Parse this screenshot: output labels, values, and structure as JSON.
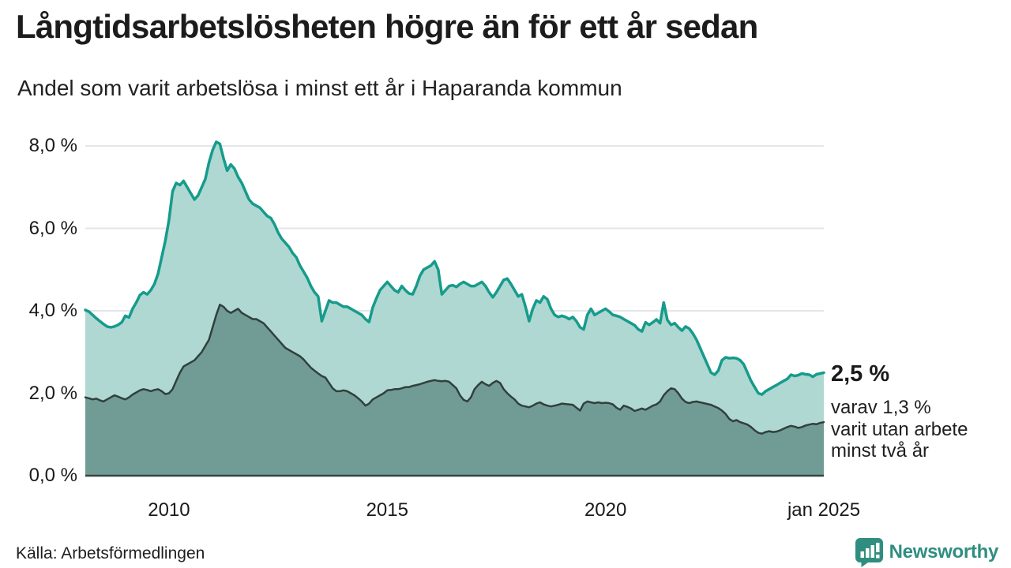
{
  "header": {
    "title": "Långtidsarbetslösheten högre än för ett år sedan",
    "subtitle": "Andel som varit arbetslösa i minst ett år i Haparanda kommun"
  },
  "footer": {
    "source": "Källa: Arbetsförmedlingen",
    "brand": "Newsworthy",
    "brand_color": "#2f8e7f"
  },
  "chart_data": {
    "type": "area",
    "title": "Långtidsarbetslösheten högre än för ett år sedan",
    "subtitle": "Andel som varit arbetslösa i minst ett år i Haparanda kommun",
    "frequency": "monthly",
    "x_start": "2008-02",
    "x_end": "2025-01",
    "ylim": [
      0,
      8
    ],
    "grid": "horizontal",
    "legend": "none",
    "y_ticks": [
      {
        "value": 0,
        "label": "0,0 %"
      },
      {
        "value": 2,
        "label": "2,0 %"
      },
      {
        "value": 4,
        "label": "4,0 %"
      },
      {
        "value": 6,
        "label": "6,0 %"
      },
      {
        "value": 8,
        "label": "8,0 %"
      }
    ],
    "x_ticks": [
      {
        "label": "2010",
        "month_index": 23
      },
      {
        "label": "2015",
        "month_index": 83
      },
      {
        "label": "2020",
        "month_index": 143
      },
      {
        "label": "jan 2025",
        "month_index": 203
      }
    ],
    "annotation": {
      "value": "2,5 %",
      "line1": "varav 1,3 %",
      "line2": "varit utan arbete",
      "line3": "minst två år"
    },
    "series": [
      {
        "name": "Arbetslösa minst ett år",
        "line_color": "#169b8c",
        "fill_color": "#aed8d1",
        "line_width": 3.5,
        "end_value": 2.5,
        "values": [
          4.02,
          3.98,
          3.9,
          3.82,
          3.75,
          3.68,
          3.62,
          3.6,
          3.62,
          3.66,
          3.72,
          3.88,
          3.84,
          4.05,
          4.2,
          4.38,
          4.45,
          4.4,
          4.5,
          4.65,
          4.9,
          5.3,
          5.7,
          6.2,
          6.9,
          7.1,
          7.05,
          7.15,
          7.0,
          6.85,
          6.7,
          6.8,
          7.0,
          7.2,
          7.6,
          7.9,
          8.1,
          8.05,
          7.7,
          7.4,
          7.55,
          7.45,
          7.25,
          7.1,
          6.9,
          6.7,
          6.6,
          6.55,
          6.5,
          6.4,
          6.3,
          6.25,
          6.1,
          5.9,
          5.75,
          5.65,
          5.55,
          5.4,
          5.3,
          5.1,
          4.95,
          4.8,
          4.6,
          4.45,
          4.35,
          3.75,
          4.0,
          4.25,
          4.2,
          4.2,
          4.15,
          4.1,
          4.1,
          4.05,
          4.0,
          3.95,
          3.9,
          3.8,
          3.73,
          4.08,
          4.3,
          4.5,
          4.6,
          4.7,
          4.6,
          4.5,
          4.45,
          4.6,
          4.5,
          4.42,
          4.4,
          4.6,
          4.85,
          5.0,
          5.05,
          5.1,
          5.2,
          5.0,
          4.4,
          4.5,
          4.6,
          4.62,
          4.58,
          4.65,
          4.7,
          4.65,
          4.6,
          4.6,
          4.65,
          4.7,
          4.6,
          4.45,
          4.33,
          4.45,
          4.6,
          4.75,
          4.78,
          4.65,
          4.5,
          4.35,
          4.4,
          4.1,
          3.75,
          4.05,
          4.25,
          4.2,
          4.35,
          4.28,
          4.05,
          3.9,
          3.85,
          3.88,
          3.85,
          3.8,
          3.85,
          3.75,
          3.6,
          3.55,
          3.9,
          4.05,
          3.9,
          3.95,
          4.0,
          4.05,
          3.98,
          3.9,
          3.88,
          3.85,
          3.8,
          3.75,
          3.7,
          3.65,
          3.55,
          3.5,
          3.72,
          3.66,
          3.72,
          3.79,
          3.7,
          4.2,
          3.78,
          3.66,
          3.7,
          3.6,
          3.52,
          3.62,
          3.57,
          3.45,
          3.3,
          3.1,
          2.9,
          2.7,
          2.5,
          2.45,
          2.55,
          2.8,
          2.87,
          2.85,
          2.86,
          2.85,
          2.8,
          2.7,
          2.5,
          2.3,
          2.15,
          2.0,
          1.97,
          2.05,
          2.1,
          2.15,
          2.2,
          2.25,
          2.3,
          2.35,
          2.45,
          2.42,
          2.44,
          2.48,
          2.46,
          2.45,
          2.4,
          2.46,
          2.48,
          2.5
        ]
      },
      {
        "name": "Arbetslösa minst två år",
        "line_color": "#31403c",
        "fill_color": "#719c95",
        "line_width": 2.5,
        "end_value": 1.3,
        "values": [
          1.9,
          1.88,
          1.85,
          1.87,
          1.83,
          1.8,
          1.85,
          1.9,
          1.95,
          1.92,
          1.88,
          1.85,
          1.9,
          1.97,
          2.02,
          2.07,
          2.1,
          2.08,
          2.05,
          2.08,
          2.1,
          2.05,
          1.98,
          2.0,
          2.1,
          2.3,
          2.5,
          2.65,
          2.7,
          2.75,
          2.8,
          2.9,
          3.0,
          3.15,
          3.3,
          3.6,
          3.9,
          4.15,
          4.1,
          4.0,
          3.95,
          4.0,
          4.05,
          3.95,
          3.9,
          3.85,
          3.8,
          3.8,
          3.75,
          3.7,
          3.6,
          3.5,
          3.4,
          3.3,
          3.2,
          3.1,
          3.05,
          3.0,
          2.95,
          2.9,
          2.82,
          2.72,
          2.62,
          2.55,
          2.48,
          2.42,
          2.38,
          2.25,
          2.12,
          2.05,
          2.05,
          2.07,
          2.05,
          2.0,
          1.95,
          1.88,
          1.8,
          1.7,
          1.75,
          1.85,
          1.9,
          1.95,
          2.0,
          2.07,
          2.08,
          2.1,
          2.1,
          2.12,
          2.15,
          2.15,
          2.18,
          2.2,
          2.22,
          2.25,
          2.28,
          2.3,
          2.32,
          2.3,
          2.29,
          2.3,
          2.28,
          2.2,
          2.12,
          1.95,
          1.84,
          1.8,
          1.9,
          2.1,
          2.2,
          2.28,
          2.22,
          2.18,
          2.25,
          2.3,
          2.25,
          2.1,
          2.0,
          1.92,
          1.85,
          1.75,
          1.7,
          1.68,
          1.66,
          1.7,
          1.75,
          1.78,
          1.73,
          1.7,
          1.68,
          1.7,
          1.72,
          1.75,
          1.74,
          1.73,
          1.72,
          1.65,
          1.58,
          1.75,
          1.8,
          1.78,
          1.76,
          1.78,
          1.76,
          1.77,
          1.76,
          1.73,
          1.65,
          1.6,
          1.7,
          1.67,
          1.63,
          1.57,
          1.6,
          1.63,
          1.6,
          1.65,
          1.7,
          1.73,
          1.8,
          1.95,
          2.05,
          2.12,
          2.1,
          2.0,
          1.87,
          1.79,
          1.76,
          1.79,
          1.8,
          1.78,
          1.76,
          1.74,
          1.72,
          1.68,
          1.64,
          1.58,
          1.5,
          1.38,
          1.32,
          1.35,
          1.3,
          1.27,
          1.24,
          1.18,
          1.1,
          1.04,
          1.02,
          1.06,
          1.08,
          1.06,
          1.07,
          1.1,
          1.14,
          1.18,
          1.21,
          1.19,
          1.16,
          1.18,
          1.22,
          1.24,
          1.26,
          1.25,
          1.28,
          1.3
        ]
      }
    ],
    "colors": {
      "gridline": "#e4e6e9",
      "baseline": "#39443f",
      "text": "#1a1a1a"
    }
  }
}
